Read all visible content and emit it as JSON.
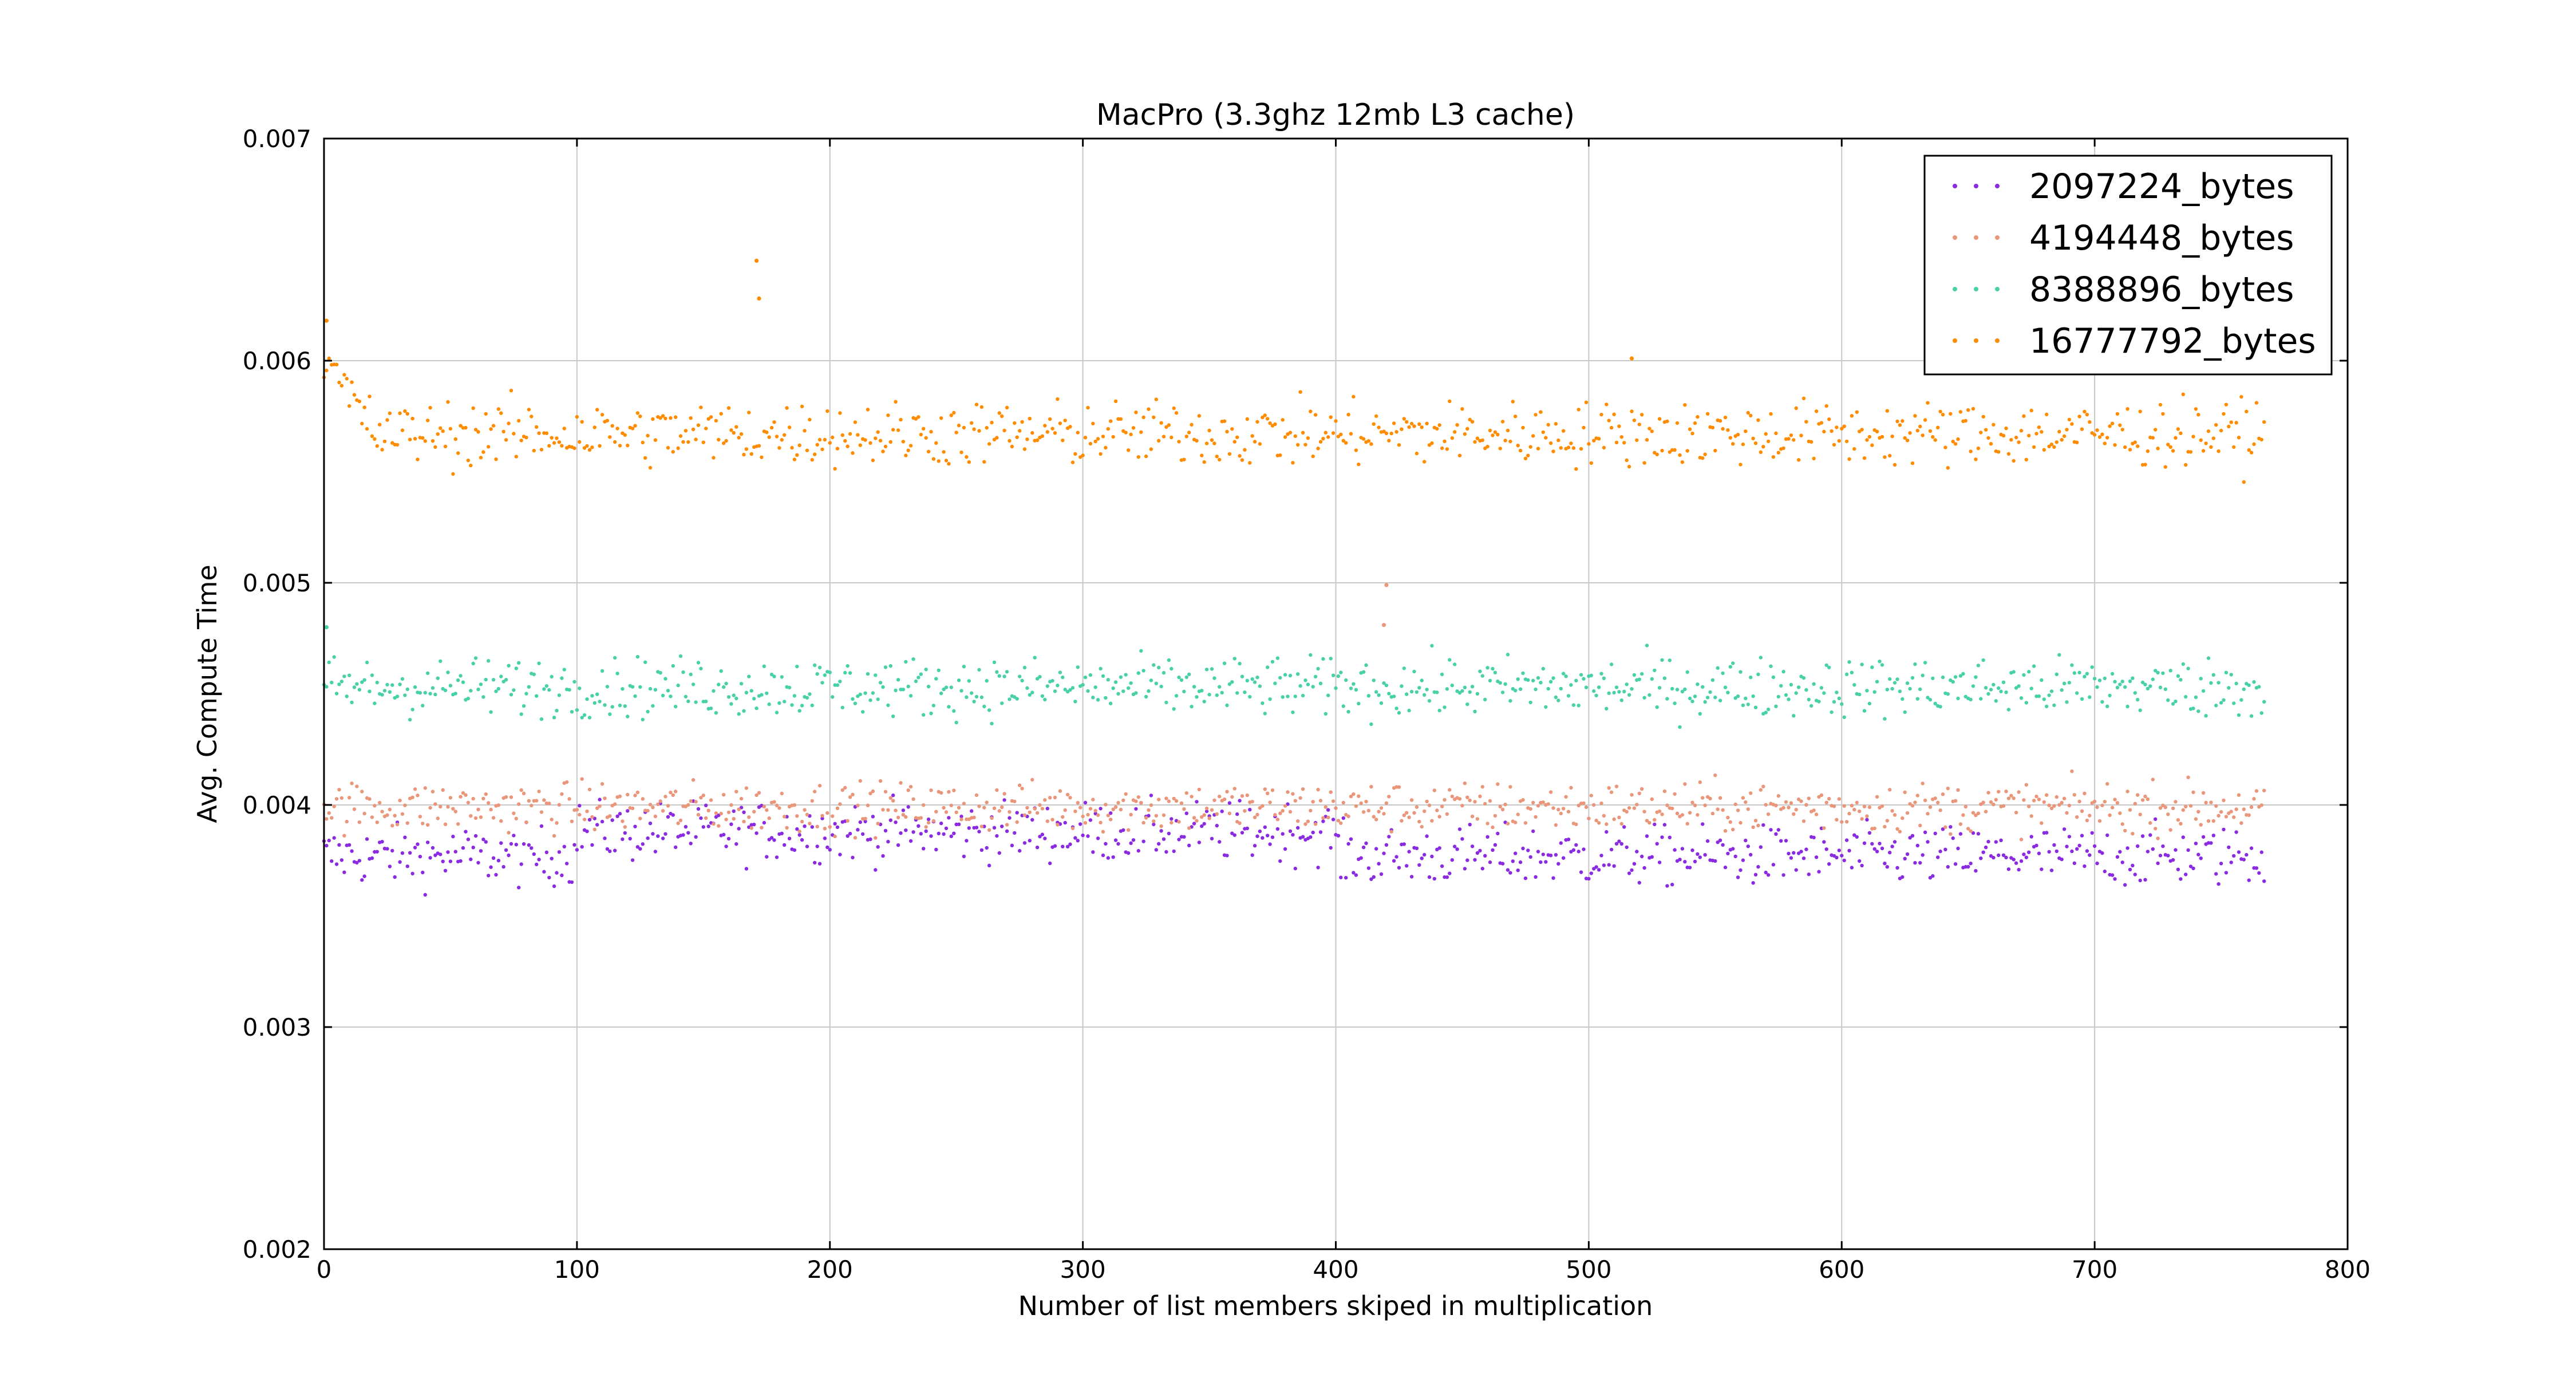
{
  "chart_data": {
    "type": "scatter",
    "title": "MacPro (3.3ghz 12mb L3 cache)",
    "xlabel": "Number of list members skiped in multiplication",
    "ylabel": "Avg. Compute Time",
    "xlim": [
      0,
      800
    ],
    "ylim": [
      0.002,
      0.007
    ],
    "xticks": [
      "0",
      "100",
      "200",
      "300",
      "400",
      "500",
      "600",
      "700",
      "800"
    ],
    "yticks": [
      "0.002",
      "0.003",
      "0.004",
      "0.005",
      "0.006",
      "0.007"
    ],
    "grid": true,
    "legend_position": "top-right",
    "n_points": 768,
    "series": [
      {
        "name": "2097224_bytes",
        "color": "#8a2be2",
        "approx_mean": 0.00382,
        "approx_spread": 0.00012,
        "trend": "slightly higher (~0.00388) between x=100 and x=400, then ~0.00378",
        "outliers": []
      },
      {
        "name": "4194448_bytes",
        "color": "#e9967a",
        "approx_mean": 0.00399,
        "approx_spread": 0.0001,
        "trend": "flat around 0.0040",
        "outliers": [
          [
            420,
            0.00499
          ],
          [
            419,
            0.00481
          ]
        ]
      },
      {
        "name": "8388896_bytes",
        "color": "#48d1a8",
        "approx_mean": 0.00453,
        "approx_spread": 0.00012,
        "trend": "flat around 0.00452",
        "outliers": [
          [
            1,
            0.0048
          ]
        ]
      },
      {
        "name": "16777792_bytes",
        "color": "#ff8c00",
        "approx_mean": 0.00567,
        "approx_spread": 0.00013,
        "trend": "starts near 0.0060 at x=0 and settles to ~0.00567 by x=20",
        "outliers": [
          [
            171,
            0.00645
          ],
          [
            172,
            0.00628
          ],
          [
            1,
            0.00618
          ],
          [
            517,
            0.00601
          ]
        ]
      }
    ]
  }
}
